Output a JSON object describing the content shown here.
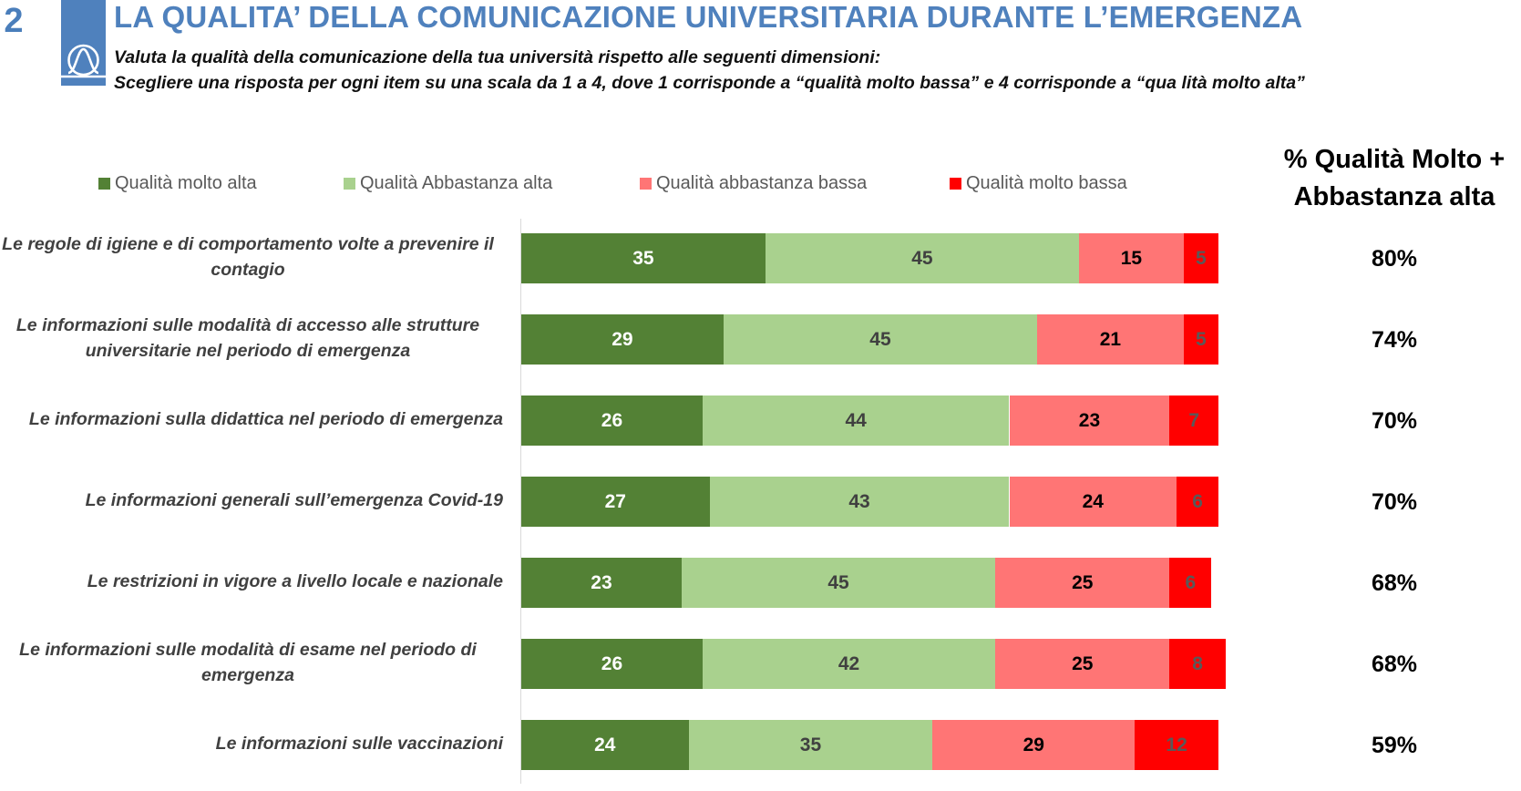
{
  "header": {
    "slide_number": "2",
    "title": "LA QUALITA’ DELLA COMUNICAZIONE UNIVERSITARIA DURANTE L’EMERGENZA",
    "subtitle_line1": "Valuta la qualità della comunicazione della tua università rispetto alle seguenti dimensioni:",
    "subtitle_line2": "Scegliere una risposta per ogni item su una scala da 1 a 4, dove 1 corrisponde a “qualità molto bassa” e 4 corrisponde a “qua lità molto alta”",
    "logo_icon": "bell-curve-logo-icon"
  },
  "colors": {
    "brand_blue": "#4f81bd",
    "molto_alta": "#538135",
    "abbastanza_alta": "#a9d18e",
    "abbastanza_bassa": "#ff7575",
    "molto_bassa": "#ff0000"
  },
  "summary_column": {
    "heading_line1": "% Qualità Molto +",
    "heading_line2": "Abbastanza alta"
  },
  "chart_data": {
    "type": "bar",
    "orientation": "horizontal",
    "stacked": true,
    "title": "LA QUALITA’ DELLA COMUNICAZIONE UNIVERSITARIA DURANTE L’EMERGENZA",
    "xlabel": "",
    "ylabel": "",
    "xlim": [
      0,
      100
    ],
    "grid": false,
    "legend_position": "top",
    "categories": [
      [
        "Le regole di igiene e di comportamento volte a prevenire il",
        "contagio"
      ],
      [
        "Le informazioni sulle modalità di accesso alle strutture",
        "universitarie nel periodo di emergenza"
      ],
      [
        "Le informazioni sulla didattica nel periodo di emergenza"
      ],
      [
        "Le informazioni generali sull’emergenza Covid-19"
      ],
      [
        "Le restrizioni in vigore a livello locale e nazionale"
      ],
      [
        "Le informazioni sulle modalità di esame nel periodo di",
        "emergenza"
      ],
      [
        "Le informazioni sulle vaccinazioni"
      ]
    ],
    "series": [
      {
        "name": "Qualità molto alta",
        "color": "#538135",
        "label_color": "#ffffff",
        "values": [
          35,
          29,
          26,
          27,
          23,
          26,
          24
        ]
      },
      {
        "name": "Qualità Abbastanza alta",
        "color": "#a9d18e",
        "label_color": "#404040",
        "values": [
          45,
          45,
          44,
          43,
          45,
          42,
          35
        ]
      },
      {
        "name": "Qualità abbastanza bassa",
        "color": "#ff7575",
        "label_color": "#000000",
        "values": [
          15,
          21,
          23,
          24,
          25,
          25,
          29
        ]
      },
      {
        "name": "Qualità molto bassa",
        "color": "#ff0000",
        "label_color": "#595959",
        "values": [
          5,
          5,
          7,
          6,
          6,
          8,
          12
        ]
      }
    ],
    "summary_values": [
      "80%",
      "74%",
      "70%",
      "70%",
      "68%",
      "68%",
      "59%"
    ]
  }
}
